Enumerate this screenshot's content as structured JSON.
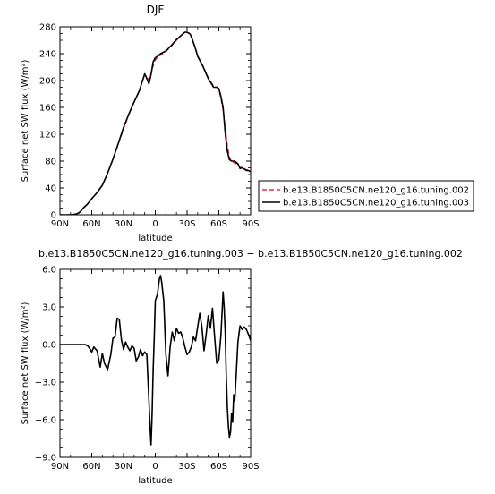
{
  "chart_data": [
    {
      "type": "line",
      "title": "DJF",
      "xlabel": "latitude",
      "ylabel": "Surface net SW flux (W/m²)",
      "xlim": [
        90,
        -90
      ],
      "ylim": [
        0,
        280
      ],
      "x_ticks": [
        90,
        60,
        30,
        0,
        -30,
        -60,
        -90
      ],
      "x_tick_labels": [
        "90N",
        "60N",
        "30N",
        "0",
        "30S",
        "60S",
        "90S"
      ],
      "y_ticks": [
        0,
        40,
        80,
        120,
        160,
        200,
        240,
        280
      ],
      "y_tick_labels": [
        "0",
        "40",
        "80",
        "120",
        "160",
        "200",
        "240",
        "280"
      ],
      "legend_position": "right",
      "series": [
        {
          "name": "b.e13.B1850C5CN.ne120_g16.tuning.002",
          "color": "#e8001c",
          "dash": "dashed",
          "x": [
            90,
            85,
            80,
            75,
            72,
            70,
            68,
            66,
            64,
            62,
            60,
            55,
            50,
            45,
            40,
            35,
            30,
            25,
            20,
            15,
            12,
            10,
            8,
            6,
            4,
            2,
            0,
            -2,
            -5,
            -10,
            -15,
            -20,
            -25,
            -28,
            -30,
            -33,
            -35,
            -38,
            -40,
            -45,
            -50,
            -55,
            -58,
            -60,
            -62,
            -64,
            -66,
            -68,
            -70,
            -72,
            -75,
            -78,
            -80,
            -82,
            -84,
            -86,
            -88,
            -90
          ],
          "values": [
            0,
            0,
            0,
            1,
            3,
            6,
            10,
            13,
            16,
            20,
            24,
            33,
            44,
            62,
            82,
            105,
            128,
            149,
            168,
            185,
            200,
            209,
            206,
            201,
            210,
            222,
            231,
            234,
            238,
            243,
            251,
            260,
            268,
            271,
            272,
            270,
            262,
            248,
            237,
            222,
            204,
            192,
            190,
            186,
            173,
            156,
            132,
            103,
            85,
            80,
            77,
            75,
            70,
            71,
            69,
            67,
            67,
            64
          ]
        },
        {
          "name": "b.e13.B1850C5CN.ne120_g16.tuning.003",
          "color": "#000000",
          "dash": "solid",
          "x": [
            90,
            85,
            80,
            75,
            72,
            70,
            68,
            66,
            64,
            62,
            60,
            55,
            50,
            45,
            40,
            35,
            30,
            25,
            20,
            15,
            12,
            10,
            8,
            6,
            4,
            2,
            0,
            -2,
            -5,
            -10,
            -15,
            -20,
            -25,
            -28,
            -30,
            -33,
            -35,
            -38,
            -40,
            -45,
            -50,
            -55,
            -58,
            -60,
            -62,
            -64,
            -66,
            -68,
            -70,
            -72,
            -75,
            -78,
            -80,
            -82,
            -84,
            -86,
            -88,
            -90
          ],
          "values": [
            0,
            0,
            0,
            1,
            3,
            6,
            10,
            13,
            16,
            20,
            24,
            33,
            44,
            62,
            83,
            106,
            130,
            150,
            168,
            185,
            200,
            210,
            203,
            195,
            209,
            228,
            234,
            236,
            240,
            244,
            252,
            261,
            268,
            272,
            272,
            269,
            261,
            247,
            236,
            221,
            203,
            190,
            190,
            188,
            176,
            160,
            122,
            95,
            82,
            80,
            80,
            76,
            69,
            70,
            68,
            66,
            66,
            64
          ]
        }
      ]
    },
    {
      "type": "line",
      "title": "b.e13.B1850C5CN.ne120_g16.tuning.003 − b.e13.B1850C5CN.ne120_g16.tuning.002",
      "xlabel": "latitude",
      "ylabel": "Surface net SW flux (W/m²)",
      "xlim": [
        90,
        -90
      ],
      "ylim": [
        -9,
        6
      ],
      "x_ticks": [
        90,
        60,
        30,
        0,
        -30,
        -60,
        -90
      ],
      "x_tick_labels": [
        "90N",
        "60N",
        "30N",
        "0",
        "30S",
        "60S",
        "90S"
      ],
      "y_ticks": [
        -9,
        -6,
        -3,
        0,
        3,
        6
      ],
      "y_tick_labels": [
        "−9.0",
        "−6.0",
        "−3.0",
        "0.0",
        "3.0",
        "6.0"
      ],
      "series": [
        {
          "color": "#000000",
          "dash": "solid",
          "x": [
            90,
            85,
            80,
            75,
            70,
            66,
            64,
            62,
            60,
            58,
            55,
            52,
            50,
            48,
            45,
            42,
            40,
            38,
            36,
            34,
            32,
            30,
            28,
            26,
            24,
            22,
            20,
            18,
            16,
            14,
            12,
            10,
            8,
            6,
            5,
            4,
            3,
            2,
            1,
            0,
            -2,
            -4,
            -5,
            -6,
            -8,
            -10,
            -12,
            -14,
            -16,
            -18,
            -20,
            -22,
            -24,
            -26,
            -28,
            -30,
            -32,
            -34,
            -36,
            -38,
            -40,
            -42,
            -44,
            -46,
            -48,
            -50,
            -52,
            -54,
            -56,
            -58,
            -60,
            -62,
            -64,
            -65,
            -66,
            -67,
            -68,
            -69,
            -70,
            -71,
            -72,
            -73,
            -74,
            -75,
            -76,
            -78,
            -80,
            -82,
            -84,
            -86,
            -88,
            -90
          ],
          "values": [
            0,
            0,
            0,
            0,
            0,
            0,
            -0.1,
            -0.3,
            -0.6,
            -0.2,
            -0.5,
            -1.8,
            -0.7,
            -1.5,
            -2.0,
            -0.8,
            0.5,
            0.6,
            2.1,
            2.0,
            0.4,
            -0.4,
            0.2,
            -0.2,
            -0.5,
            -0.1,
            -0.3,
            -1.3,
            -1.0,
            -0.4,
            -0.9,
            -0.6,
            -0.8,
            -4.5,
            -6.5,
            -8.0,
            -5.5,
            -2.0,
            0.5,
            3.5,
            4.0,
            5.3,
            5.5,
            5.0,
            3.5,
            -0.8,
            -2.5,
            -0.2,
            1.0,
            0.3,
            1.3,
            0.9,
            1.0,
            0.5,
            -0.2,
            -0.8,
            -0.6,
            -0.2,
            0.6,
            0.3,
            1.4,
            2.5,
            1.4,
            -0.5,
            0.8,
            2.3,
            1.3,
            2.9,
            0.6,
            -1.5,
            -1.2,
            0.8,
            4.2,
            3.0,
            1.0,
            -2.5,
            -5.0,
            -6.5,
            -7.4,
            -7.0,
            -5.5,
            -6.2,
            -4.0,
            -4.5,
            -3.0,
            0.2,
            1.5,
            1.2,
            1.4,
            1.2,
            0.8,
            0.3
          ]
        }
      ]
    }
  ]
}
